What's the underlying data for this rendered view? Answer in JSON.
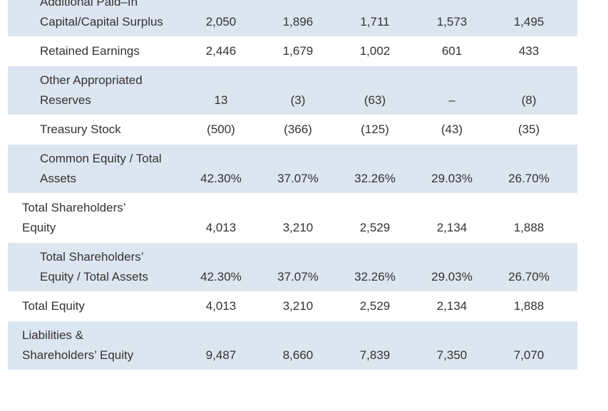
{
  "table": {
    "rows": [
      {
        "label": "Additional Paid–In Capital/Capital Surplus",
        "values": [
          "2,050",
          "1,896",
          "1,711",
          "1,573",
          "1,495"
        ]
      },
      {
        "label": "Retained Earnings",
        "values": [
          "2,446",
          "1,679",
          "1,002",
          "601",
          "433"
        ]
      },
      {
        "label": "Other Appropriated Reserves",
        "values": [
          "13",
          "(3)",
          "(63)",
          "–",
          "(8)"
        ]
      },
      {
        "label": "Treasury Stock",
        "values": [
          "(500)",
          "(366)",
          "(125)",
          "(43)",
          "(35)"
        ]
      },
      {
        "label": "Common Equity / Total Assets",
        "values": [
          "42.30%",
          "37.07%",
          "32.26%",
          "29.03%",
          "26.70%"
        ]
      },
      {
        "label": "Total Shareholders’ Equity",
        "values": [
          "4,013",
          "3,210",
          "2,529",
          "2,134",
          "1,888"
        ]
      },
      {
        "label": "Total Shareholders’ Equity / Total Assets",
        "values": [
          "42.30%",
          "37.07%",
          "32.26%",
          "29.03%",
          "26.70%"
        ]
      },
      {
        "label": "Total Equity",
        "values": [
          "4,013",
          "3,210",
          "2,529",
          "2,134",
          "1,888"
        ]
      },
      {
        "label": "Liabilities & Shareholders’ Equity",
        "values": [
          "9,487",
          "8,660",
          "7,839",
          "7,350",
          "7,070"
        ]
      }
    ]
  }
}
